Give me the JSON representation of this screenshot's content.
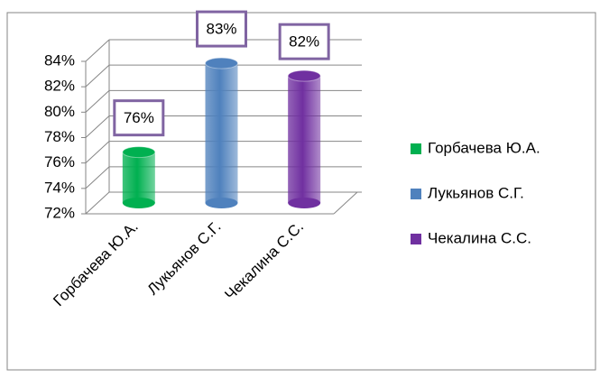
{
  "chart_data": {
    "type": "bar3d",
    "categories": [
      "Горбачева Ю.А.",
      "Лукьянов С.Г.",
      "Чекалина С.С."
    ],
    "values": [
      76,
      83,
      82
    ],
    "value_labels": [
      "76%",
      "83%",
      "82%"
    ],
    "colors": [
      "#00b050",
      "#4f81bd",
      "#7030a0"
    ],
    "ylim": [
      72,
      84
    ],
    "yticks": [
      {
        "value": 72,
        "label": "72%"
      },
      {
        "value": 74,
        "label": "74%"
      },
      {
        "value": 76,
        "label": "76%"
      },
      {
        "value": 78,
        "label": "78%"
      },
      {
        "value": 80,
        "label": "80%"
      },
      {
        "value": 82,
        "label": "82%"
      },
      {
        "value": 84,
        "label": "84%"
      }
    ],
    "grid": true,
    "legend": "right"
  }
}
